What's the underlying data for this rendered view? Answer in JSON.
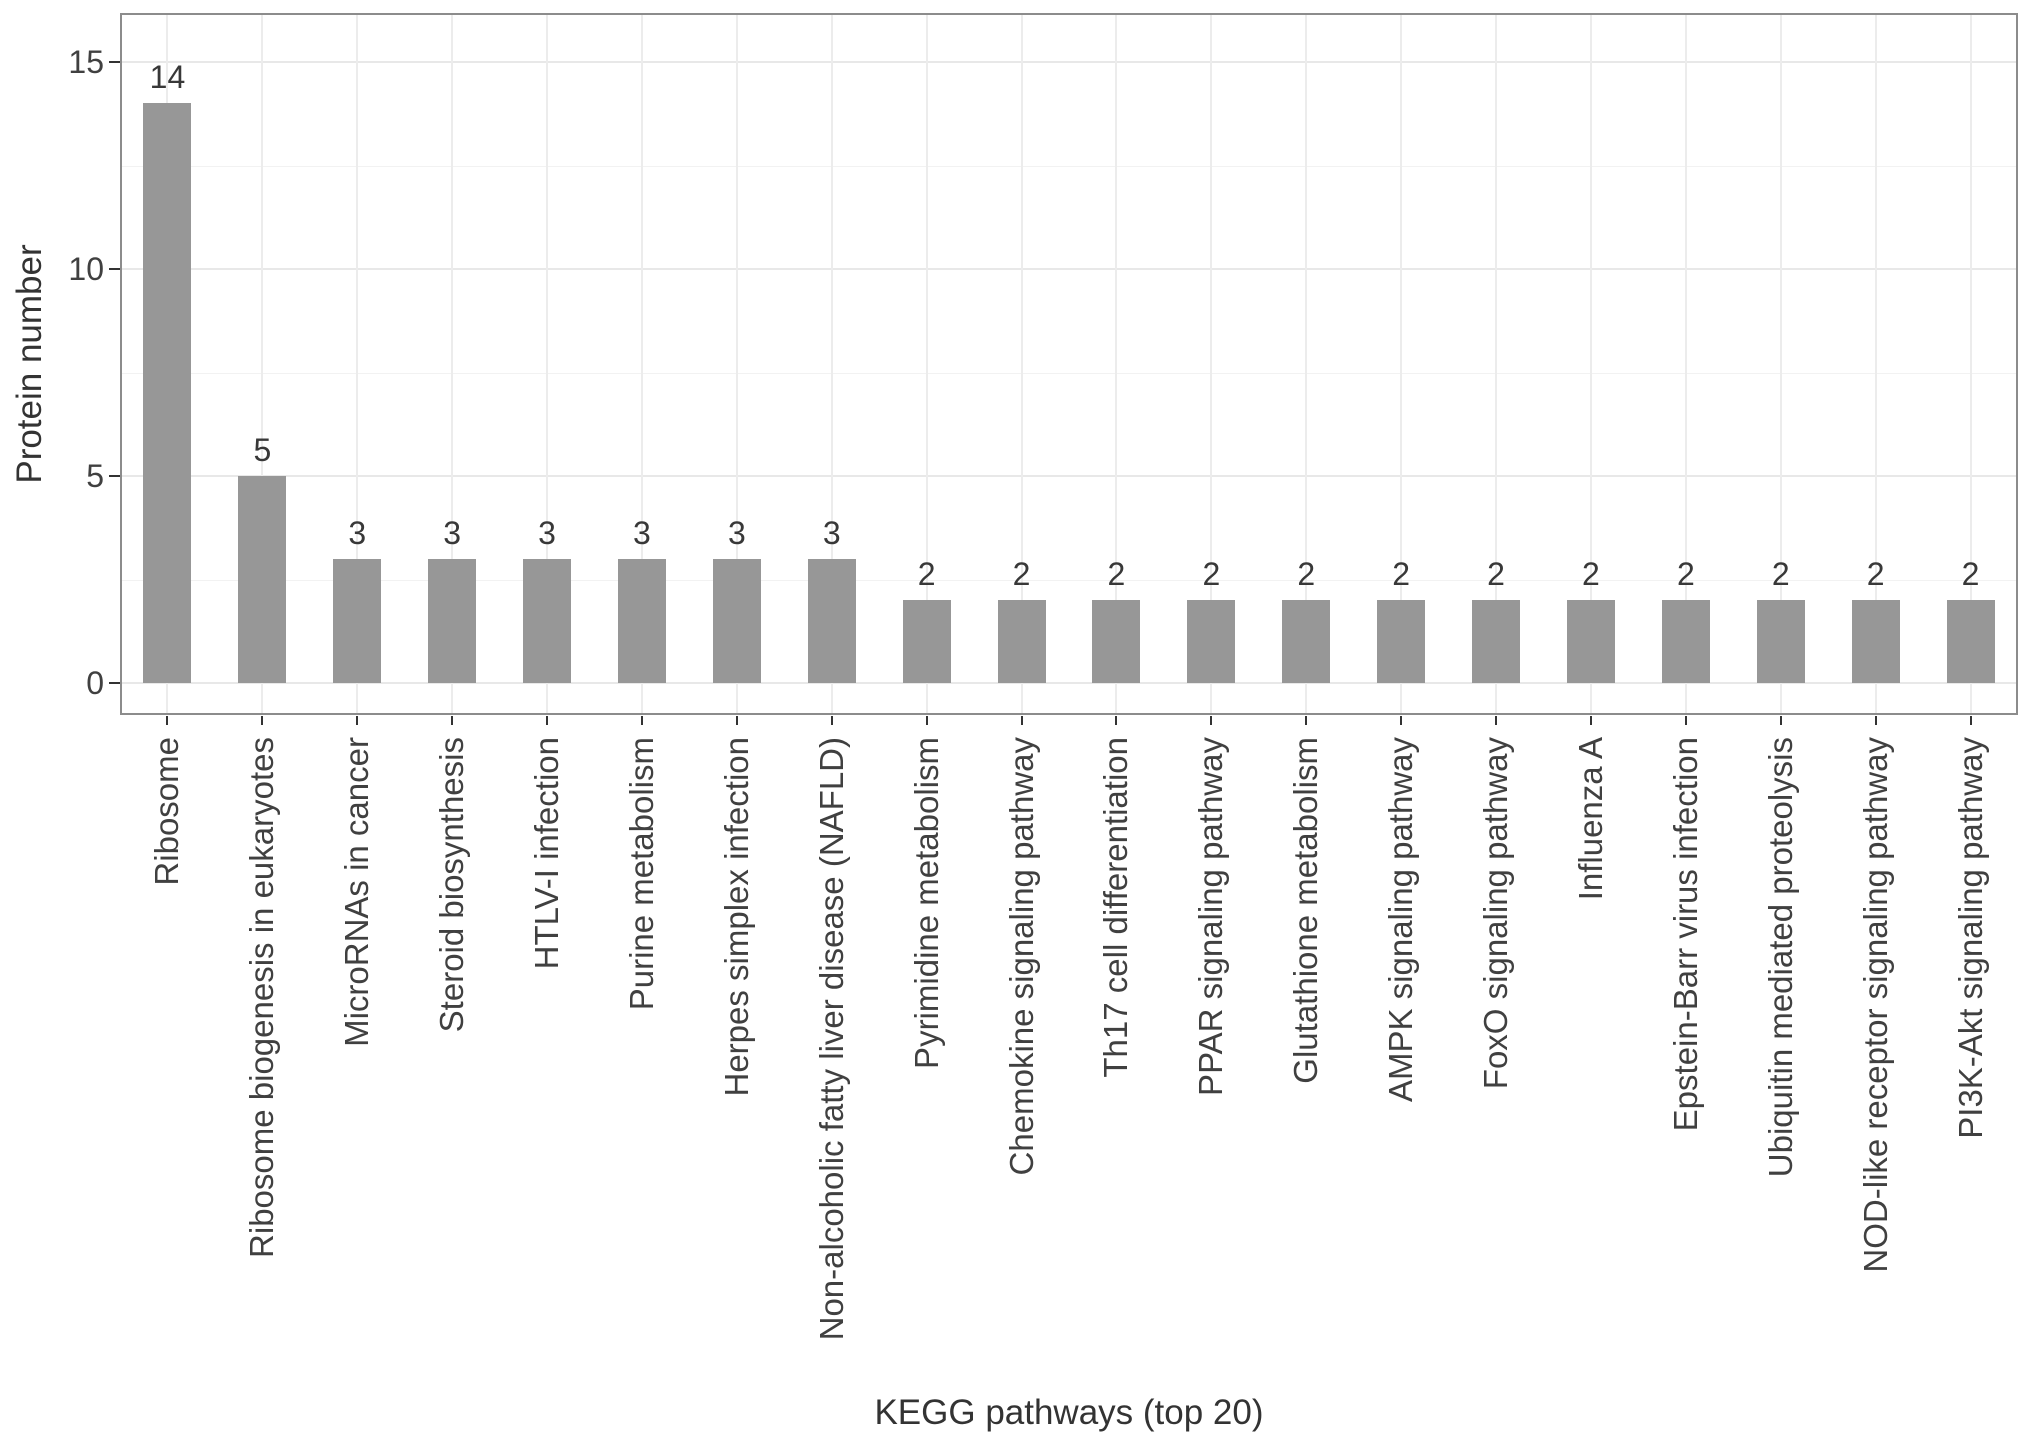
{
  "chart_data": {
    "type": "bar",
    "title": "",
    "xlabel": "KEGG pathways (top 20)",
    "ylabel": "Protein number",
    "categories": [
      "Ribosome",
      "Ribosome biogenesis in eukaryotes",
      "MicroRNAs in cancer",
      "Steroid biosynthesis",
      "HTLV-I infection",
      "Purine metabolism",
      "Herpes simplex infection",
      "Non-alcoholic fatty liver disease (NAFLD)",
      "Pyrimidine metabolism",
      "Chemokine signaling pathway",
      "Th17 cell differentiation",
      "PPAR signaling pathway",
      "Glutathione metabolism",
      "AMPK signaling pathway",
      "FoxO signaling pathway",
      "Influenza A",
      "Epstein-Barr virus infection",
      "Ubiquitin mediated proteolysis",
      "NOD-like receptor signaling pathway",
      "PI3K-Akt signaling pathway"
    ],
    "values": [
      14,
      5,
      3,
      3,
      3,
      3,
      3,
      3,
      2,
      2,
      2,
      2,
      2,
      2,
      2,
      2,
      2,
      2,
      2,
      2
    ],
    "bar_labels": [
      "14",
      "5",
      "3",
      "3",
      "3",
      "3",
      "3",
      "3",
      "2",
      "2",
      "2",
      "2",
      "2",
      "2",
      "2",
      "2",
      "2",
      "2",
      "2",
      "2"
    ],
    "yticks": [
      0,
      5,
      10,
      15
    ],
    "ylim": [
      -0.8,
      16.2
    ],
    "grid": {
      "h_major_step": 5,
      "h_minor_step": 2.5,
      "v_at_categories": true
    },
    "legend": "none",
    "colors": {
      "bar_fill": "#979797",
      "grid_major": "#e8e8e8",
      "grid_minor": "#f2f2f2",
      "panel_border": "#8c8c8c",
      "tick_mark": "#333333",
      "axis_text": "#404040",
      "axis_title": "#333333",
      "bar_label": "#383838",
      "background": "#ffffff"
    }
  }
}
